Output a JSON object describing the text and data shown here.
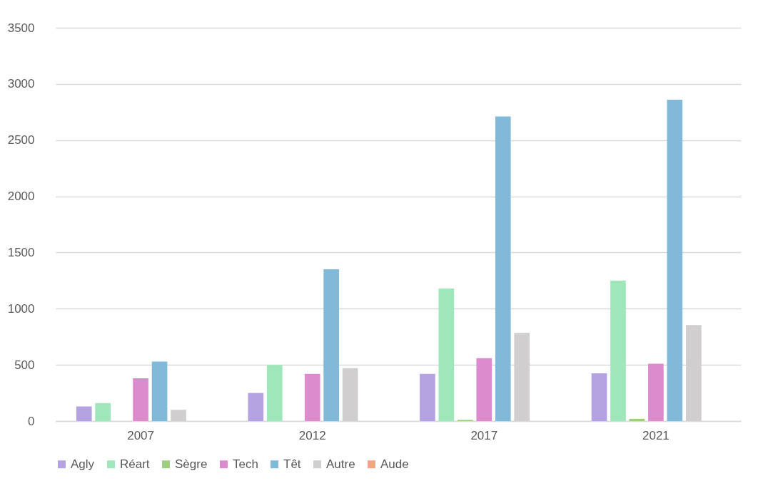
{
  "chart_data": {
    "type": "bar",
    "categories": [
      "2007",
      "2012",
      "2017",
      "2021"
    ],
    "series": [
      {
        "name": "Agly",
        "color": "#b4a3e0",
        "values": [
          130,
          250,
          420,
          425
        ]
      },
      {
        "name": "Réart",
        "color": "#a0e6bb",
        "values": [
          160,
          500,
          1180,
          1250
        ]
      },
      {
        "name": "Sègre",
        "color": "#9dcf7f",
        "values": [
          0,
          0,
          10,
          20
        ]
      },
      {
        "name": "Tech",
        "color": "#dc8ccc",
        "values": [
          380,
          420,
          560,
          510
        ]
      },
      {
        "name": "Têt",
        "color": "#82b9d9",
        "values": [
          530,
          1350,
          2710,
          2860
        ]
      },
      {
        "name": "Autre",
        "color": "#d0cece",
        "values": [
          100,
          470,
          785,
          855
        ]
      },
      {
        "name": "Aude",
        "color": "#f4a57f",
        "values": [
          0,
          0,
          0,
          0
        ]
      }
    ],
    "ylim": [
      0,
      3500
    ],
    "yticks": [
      0,
      500,
      1000,
      1500,
      2000,
      2500,
      3000,
      3500
    ],
    "grid": "y",
    "legend": "bottom"
  }
}
